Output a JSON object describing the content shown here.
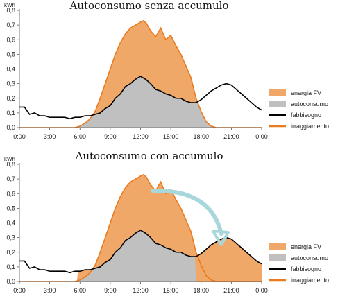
{
  "chart_data": [
    {
      "type": "area",
      "title": "Autoconsumo senza accumulo",
      "y_unit": "kWh",
      "ylim": [
        0,
        0.8
      ],
      "y_ticks": [
        "0,0",
        "0,1",
        "0,2",
        "0,3",
        "0,4",
        "0,5",
        "0,6",
        "0,7",
        "0,8"
      ],
      "x_ticks": [
        "0:00",
        "3:00",
        "6:00",
        "9:00",
        "12:00",
        "15:00",
        "18:00",
        "21:00",
        "0:00"
      ],
      "xlim": [
        0,
        24
      ],
      "grid": false,
      "legend_position": "right",
      "legend": [
        "energia FV",
        "autoconsumo",
        "fabbisogno",
        "irraggiamento"
      ],
      "colors": {
        "energia_fv": "#f0a868",
        "autoconsumo": "#c0c0c0",
        "fabbisogno": "#000000",
        "irraggiamento": "#ea7a1d"
      },
      "shading": "without-storage",
      "series": [
        {
          "name": "fabbisogno",
          "x": [
            0,
            0.5,
            0.8,
            1,
            1.5,
            2,
            2.5,
            3,
            3.5,
            4,
            4.5,
            5,
            5.5,
            6,
            6.5,
            7,
            7.5,
            8,
            8.5,
            9,
            9.5,
            10,
            10.5,
            11,
            11.5,
            12,
            12.5,
            13,
            13.5,
            14,
            14.5,
            15,
            15.5,
            16,
            16.5,
            17,
            17.5,
            18,
            18.5,
            19,
            19.5,
            20,
            20.5,
            21,
            21.5,
            22,
            22.5,
            23,
            23.5,
            24
          ],
          "y": [
            0.14,
            0.14,
            0.11,
            0.09,
            0.1,
            0.08,
            0.08,
            0.07,
            0.07,
            0.07,
            0.07,
            0.06,
            0.07,
            0.07,
            0.08,
            0.08,
            0.09,
            0.1,
            0.13,
            0.15,
            0.2,
            0.23,
            0.28,
            0.3,
            0.33,
            0.35,
            0.33,
            0.3,
            0.26,
            0.25,
            0.23,
            0.22,
            0.2,
            0.2,
            0.18,
            0.17,
            0.17,
            0.19,
            0.22,
            0.25,
            0.27,
            0.29,
            0.3,
            0.29,
            0.26,
            0.23,
            0.2,
            0.17,
            0.14,
            0.12
          ]
        },
        {
          "name": "irraggiamento",
          "x": [
            0,
            5.5,
            6,
            6.5,
            7,
            7.5,
            8,
            8.5,
            9,
            9.5,
            10,
            10.5,
            11,
            11.5,
            12,
            12.3,
            12.6,
            13,
            13.5,
            14,
            14.5,
            15,
            15.5,
            16,
            16.5,
            17,
            17.5,
            18,
            18.5,
            19,
            19.5,
            20,
            24
          ],
          "y": [
            0,
            0,
            0.01,
            0.03,
            0.06,
            0.11,
            0.2,
            0.3,
            0.4,
            0.5,
            0.58,
            0.64,
            0.68,
            0.7,
            0.72,
            0.73,
            0.71,
            0.66,
            0.62,
            0.68,
            0.6,
            0.63,
            0.56,
            0.5,
            0.42,
            0.34,
            0.2,
            0.11,
            0.04,
            0.01,
            0,
            0,
            0
          ]
        }
      ]
    },
    {
      "type": "area",
      "title": "Autoconsumo con accumulo",
      "y_unit": "kWh",
      "ylim": [
        0,
        0.8
      ],
      "y_ticks": [
        "0,0",
        "0,1",
        "0,2",
        "0,3",
        "0,4",
        "0,5",
        "0,6",
        "0,7",
        "0,8"
      ],
      "x_ticks": [
        "0:00",
        "3:00",
        "6:00",
        "9:00",
        "12:00",
        "15:00",
        "18:00",
        "21:00",
        "0:00"
      ],
      "xlim": [
        0,
        24
      ],
      "grid": false,
      "legend_position": "right",
      "legend": [
        "energia FV",
        "autoconsumo",
        "fabbisogno",
        "irraggiamento"
      ],
      "colors": {
        "energia_fv": "#f0a868",
        "autoconsumo": "#c0c0c0",
        "fabbisogno": "#000000",
        "irraggiamento": "#ea7a1d",
        "arrow": "#a8d8dc"
      },
      "shading": "with-storage",
      "annotation": {
        "type": "arrow",
        "from": [
          13.2,
          0.62
        ],
        "to": [
          20,
          0.26
        ]
      },
      "series": [
        {
          "name": "fabbisogno",
          "x": [
            0,
            0.5,
            0.8,
            1,
            1.5,
            2,
            2.5,
            3,
            3.5,
            4,
            4.5,
            5,
            5.5,
            6,
            6.5,
            7,
            7.5,
            8,
            8.5,
            9,
            9.5,
            10,
            10.5,
            11,
            11.5,
            12,
            12.5,
            13,
            13.5,
            14,
            14.5,
            15,
            15.5,
            16,
            16.5,
            17,
            17.5,
            18,
            18.5,
            19,
            19.5,
            20,
            20.5,
            21,
            21.5,
            22,
            22.5,
            23,
            23.5,
            24
          ],
          "y": [
            0.14,
            0.14,
            0.11,
            0.09,
            0.1,
            0.08,
            0.08,
            0.07,
            0.07,
            0.07,
            0.07,
            0.06,
            0.07,
            0.07,
            0.08,
            0.08,
            0.09,
            0.1,
            0.13,
            0.15,
            0.2,
            0.23,
            0.28,
            0.3,
            0.33,
            0.35,
            0.33,
            0.3,
            0.26,
            0.25,
            0.23,
            0.22,
            0.2,
            0.2,
            0.18,
            0.17,
            0.17,
            0.19,
            0.22,
            0.25,
            0.27,
            0.29,
            0.3,
            0.29,
            0.26,
            0.23,
            0.2,
            0.17,
            0.14,
            0.12
          ]
        },
        {
          "name": "irraggiamento",
          "x": [
            0,
            5.5,
            6,
            6.5,
            7,
            7.5,
            8,
            8.5,
            9,
            9.5,
            10,
            10.5,
            11,
            11.5,
            12,
            12.3,
            12.6,
            13,
            13.5,
            14,
            14.5,
            15,
            15.5,
            16,
            16.5,
            17,
            17.5,
            18,
            18.5,
            19,
            19.5,
            20,
            24
          ],
          "y": [
            0,
            0,
            0.01,
            0.03,
            0.06,
            0.11,
            0.2,
            0.3,
            0.4,
            0.5,
            0.58,
            0.64,
            0.68,
            0.7,
            0.72,
            0.73,
            0.71,
            0.66,
            0.62,
            0.68,
            0.6,
            0.63,
            0.56,
            0.5,
            0.42,
            0.34,
            0.2,
            0.11,
            0.04,
            0.01,
            0,
            0,
            0
          ]
        }
      ]
    }
  ]
}
